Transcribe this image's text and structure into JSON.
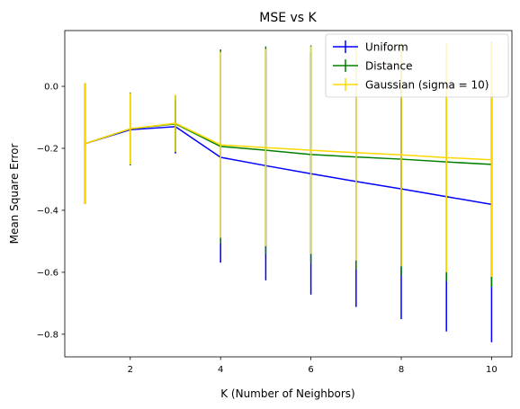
{
  "chart_data": {
    "type": "line",
    "title": "MSE vs K",
    "xlabel": "K (Number of Neighbors)",
    "ylabel": "Mean Square Error",
    "xlim": [
      0.55,
      10.45
    ],
    "ylim": [
      -0.873,
      0.18
    ],
    "xticks": [
      2,
      4,
      6,
      8,
      10
    ],
    "yticks": [
      0.0,
      -0.2,
      -0.4,
      -0.6,
      -0.8
    ],
    "xtick_labels": [
      "2",
      "4",
      "6",
      "8",
      "10"
    ],
    "ytick_labels": [
      "0.0",
      "−0.2",
      "−0.4",
      "−0.6",
      "−0.8"
    ],
    "grid": false,
    "legend_position": "top-right",
    "x": [
      1,
      2,
      3,
      4,
      5,
      6,
      7,
      8,
      9,
      10
    ],
    "series": [
      {
        "name": "Uniform",
        "color": "#0000ff",
        "values": [
          -0.185,
          -0.14,
          -0.13,
          -0.229,
          -0.256,
          -0.282,
          -0.307,
          -0.331,
          -0.356,
          -0.381
        ],
        "errors": [
          0.195,
          0.115,
          0.087,
          0.34,
          0.37,
          0.39,
          0.405,
          0.42,
          0.435,
          0.445
        ]
      },
      {
        "name": "Distance",
        "color": "#008000",
        "values": [
          -0.185,
          -0.137,
          -0.121,
          -0.194,
          -0.206,
          -0.22,
          -0.228,
          -0.235,
          -0.244,
          -0.252
        ],
        "errors": [
          0.195,
          0.117,
          0.092,
          0.313,
          0.335,
          0.352,
          0.364,
          0.375,
          0.385,
          0.395
        ]
      },
      {
        "name": "Gaussian (sigma = 10)",
        "color": "#ffd700",
        "values": [
          -0.185,
          -0.137,
          -0.119,
          -0.189,
          -0.198,
          -0.206,
          -0.214,
          -0.221,
          -0.23,
          -0.237
        ],
        "errors": [
          0.195,
          0.115,
          0.092,
          0.3,
          0.318,
          0.335,
          0.348,
          0.36,
          0.37,
          0.378
        ]
      }
    ]
  }
}
